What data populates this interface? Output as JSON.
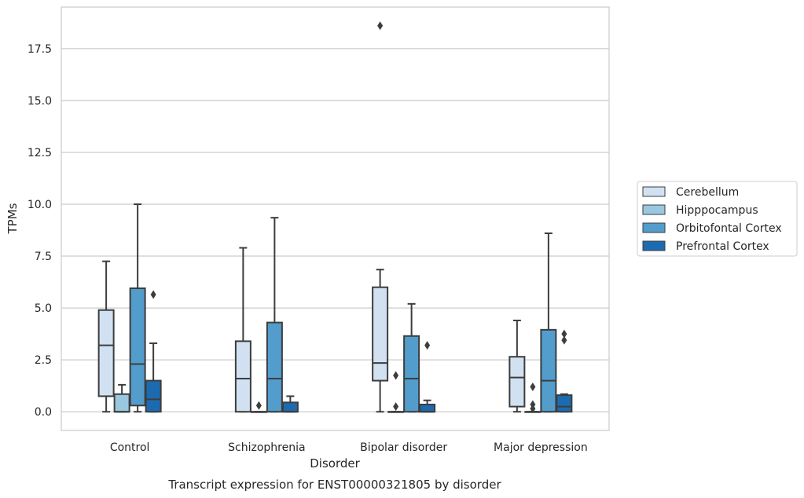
{
  "caption": "Transcript expression for ENST00000321805 by disorder",
  "chart_data": {
    "type": "box",
    "xlabel": "Disorder",
    "ylabel": "TPMs",
    "ylim": [
      -0.9,
      19.5
    ],
    "yticks": [
      0.0,
      2.5,
      5.0,
      7.5,
      10.0,
      12.5,
      15.0,
      17.5
    ],
    "ytick_labels": [
      "0.0",
      "2.5",
      "5.0",
      "7.5",
      "10.0",
      "12.5",
      "15.0",
      "17.5"
    ],
    "grid": "horizontal",
    "legend_position": "right",
    "categories": [
      "Control",
      "Schizophrenia",
      "Bipolar disorder",
      "Major depression"
    ],
    "series": [
      {
        "name": "Cerebellum",
        "color": "#d1e1f1",
        "boxes": [
          {
            "whisker_low": 0.0,
            "q1": 0.75,
            "median": 3.2,
            "q3": 4.9,
            "whisker_high": 7.25,
            "outliers": []
          },
          {
            "whisker_low": 0.0,
            "q1": 0.0,
            "median": 1.6,
            "q3": 3.4,
            "whisker_high": 7.9,
            "outliers": []
          },
          {
            "whisker_low": 0.0,
            "q1": 1.5,
            "median": 2.35,
            "q3": 6.0,
            "whisker_high": 6.85,
            "outliers": [
              18.6
            ]
          },
          {
            "whisker_low": 0.0,
            "q1": 0.25,
            "median": 1.65,
            "q3": 2.65,
            "whisker_high": 4.4,
            "outliers": []
          }
        ]
      },
      {
        "name": "Hipppocampus",
        "color": "#9ac8e0",
        "boxes": [
          {
            "whisker_low": 0.0,
            "q1": 0.0,
            "median": 0.0,
            "q3": 0.85,
            "whisker_high": 1.3,
            "outliers": []
          },
          {
            "whisker_low": 0.0,
            "q1": 0.0,
            "median": 0.0,
            "q3": 0.0,
            "whisker_high": 0.0,
            "outliers": [
              0.3
            ]
          },
          {
            "whisker_low": 0.0,
            "q1": 0.0,
            "median": 0.0,
            "q3": 0.0,
            "whisker_high": 0.0,
            "outliers": [
              1.75,
              0.25
            ]
          },
          {
            "whisker_low": 0.0,
            "q1": 0.0,
            "median": 0.0,
            "q3": 0.0,
            "whisker_high": 0.0,
            "outliers": [
              1.2,
              0.35,
              0.15
            ]
          }
        ]
      },
      {
        "name": "Orbitofontal Cortex",
        "color": "#529dcc",
        "boxes": [
          {
            "whisker_low": 0.0,
            "q1": 0.3,
            "median": 2.3,
            "q3": 5.95,
            "whisker_high": 10.0,
            "outliers": []
          },
          {
            "whisker_low": 0.0,
            "q1": 0.0,
            "median": 1.6,
            "q3": 4.3,
            "whisker_high": 9.35,
            "outliers": []
          },
          {
            "whisker_low": 0.0,
            "q1": 0.0,
            "median": 1.6,
            "q3": 3.65,
            "whisker_high": 5.2,
            "outliers": []
          },
          {
            "whisker_low": 0.0,
            "q1": 0.0,
            "median": 1.5,
            "q3": 3.95,
            "whisker_high": 8.6,
            "outliers": []
          }
        ]
      },
      {
        "name": "Prefrontal Cortex",
        "color": "#1c6bb0",
        "boxes": [
          {
            "whisker_low": 0.0,
            "q1": 0.0,
            "median": 0.6,
            "q3": 1.5,
            "whisker_high": 3.3,
            "outliers": [
              5.65
            ]
          },
          {
            "whisker_low": 0.0,
            "q1": 0.0,
            "median": 0.0,
            "q3": 0.45,
            "whisker_high": 0.75,
            "outliers": []
          },
          {
            "whisker_low": 0.0,
            "q1": 0.0,
            "median": 0.0,
            "q3": 0.35,
            "whisker_high": 0.55,
            "outliers": [
              3.2
            ]
          },
          {
            "whisker_low": 0.0,
            "q1": 0.0,
            "median": 0.25,
            "q3": 0.8,
            "whisker_high": 0.85,
            "outliers": [
              3.75,
              3.45
            ]
          }
        ]
      }
    ]
  }
}
